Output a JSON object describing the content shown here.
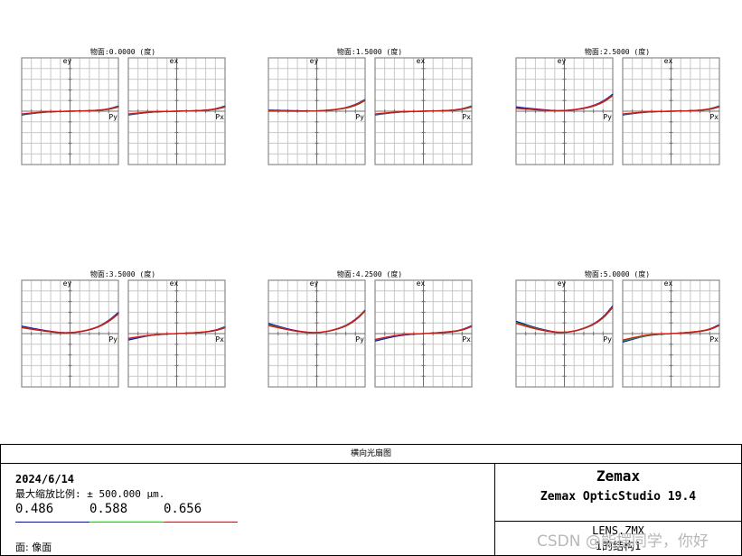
{
  "chart_data": [
    {
      "type": "line",
      "title": "物面:0.0000 (度)",
      "y_axis_label": "ey",
      "x_axis_label": "Py",
      "ylim": [
        -1,
        1
      ],
      "xlim": [
        -1,
        1
      ],
      "grid": true,
      "series": [
        {
          "name": "0.486",
          "color": "#0000ff",
          "x": [
            -1,
            -0.5,
            0,
            0.5,
            0.8,
            1
          ],
          "y": [
            -0.07,
            -0.01,
            0,
            0.01,
            0.04,
            0.1
          ]
        },
        {
          "name": "0.588",
          "color": "#00c000",
          "x": [
            -1,
            -0.5,
            0,
            0.5,
            0.8,
            1
          ],
          "y": [
            -0.06,
            -0.01,
            0,
            0.01,
            0.035,
            0.09
          ]
        },
        {
          "name": "0.656",
          "color": "#ff0000",
          "x": [
            -1,
            -0.5,
            0,
            0.5,
            0.8,
            1
          ],
          "y": [
            -0.05,
            -0.01,
            0,
            0.01,
            0.03,
            0.08
          ]
        }
      ]
    },
    {
      "type": "line",
      "title": "物面:0.0000 (度)",
      "y_axis_label": "ex",
      "x_axis_label": "Px",
      "ylim": [
        -1,
        1
      ],
      "xlim": [
        -1,
        1
      ],
      "grid": true,
      "series": [
        {
          "name": "0.486",
          "color": "#0000ff",
          "x": [
            -1,
            -0.5,
            0,
            0.5,
            0.8,
            1
          ],
          "y": [
            -0.07,
            -0.01,
            0,
            0.01,
            0.04,
            0.1
          ]
        },
        {
          "name": "0.588",
          "color": "#00c000",
          "x": [
            -1,
            -0.5,
            0,
            0.5,
            0.8,
            1
          ],
          "y": [
            -0.06,
            -0.01,
            0,
            0.01,
            0.035,
            0.09
          ]
        },
        {
          "name": "0.656",
          "color": "#ff0000",
          "x": [
            -1,
            -0.5,
            0,
            0.5,
            0.8,
            1
          ],
          "y": [
            -0.05,
            -0.01,
            0,
            0.01,
            0.03,
            0.08
          ]
        }
      ]
    },
    {
      "type": "line",
      "title": "物面:1.5000 (度)",
      "y_axis_label": "ey",
      "x_axis_label": "Py",
      "ylim": [
        -1,
        1
      ],
      "xlim": [
        -1,
        1
      ],
      "grid": true,
      "series": [
        {
          "name": "0.486",
          "color": "#0000ff",
          "x": [
            -1,
            -0.5,
            0,
            0.5,
            0.8,
            1
          ],
          "y": [
            0.02,
            0.01,
            0,
            0.04,
            0.12,
            0.22
          ]
        },
        {
          "name": "0.588",
          "color": "#00c000",
          "x": [
            -1,
            -0.5,
            0,
            0.5,
            0.8,
            1
          ],
          "y": [
            0.01,
            0,
            0,
            0.04,
            0.11,
            0.21
          ]
        },
        {
          "name": "0.656",
          "color": "#ff0000",
          "x": [
            -1,
            -0.5,
            0,
            0.5,
            0.8,
            1
          ],
          "y": [
            0,
            0,
            0,
            0.035,
            0.1,
            0.2
          ]
        }
      ]
    },
    {
      "type": "line",
      "title": "物面:1.5000 (度)",
      "y_axis_label": "ex",
      "x_axis_label": "Px",
      "ylim": [
        -1,
        1
      ],
      "xlim": [
        -1,
        1
      ],
      "grid": true,
      "series": [
        {
          "name": "0.486",
          "color": "#0000ff",
          "x": [
            -1,
            -0.5,
            0,
            0.5,
            0.8,
            1
          ],
          "y": [
            -0.07,
            -0.01,
            0,
            0.01,
            0.04,
            0.1
          ]
        },
        {
          "name": "0.588",
          "color": "#00c000",
          "x": [
            -1,
            -0.5,
            0,
            0.5,
            0.8,
            1
          ],
          "y": [
            -0.06,
            -0.01,
            0,
            0.01,
            0.035,
            0.09
          ]
        },
        {
          "name": "0.656",
          "color": "#ff0000",
          "x": [
            -1,
            -0.5,
            0,
            0.5,
            0.8,
            1
          ],
          "y": [
            -0.05,
            -0.01,
            0,
            0.01,
            0.03,
            0.08
          ]
        }
      ]
    },
    {
      "type": "line",
      "title": "物面:2.5000 (度)",
      "y_axis_label": "ey",
      "x_axis_label": "Py",
      "ylim": [
        -1,
        1
      ],
      "xlim": [
        -1,
        1
      ],
      "grid": true,
      "series": [
        {
          "name": "0.486",
          "color": "#0000ff",
          "x": [
            -1,
            -0.5,
            0,
            0.5,
            0.8,
            1
          ],
          "y": [
            0.08,
            0.03,
            0,
            0.07,
            0.18,
            0.32
          ]
        },
        {
          "name": "0.588",
          "color": "#00c000",
          "x": [
            -1,
            -0.5,
            0,
            0.5,
            0.8,
            1
          ],
          "y": [
            0.06,
            0.02,
            0,
            0.065,
            0.17,
            0.3
          ]
        },
        {
          "name": "0.656",
          "color": "#ff0000",
          "x": [
            -1,
            -0.5,
            0,
            0.5,
            0.8,
            1
          ],
          "y": [
            0.05,
            0.02,
            0,
            0.06,
            0.16,
            0.29
          ]
        }
      ]
    },
    {
      "type": "line",
      "title": "物面:2.5000 (度)",
      "y_axis_label": "ex",
      "x_axis_label": "Px",
      "ylim": [
        -1,
        1
      ],
      "xlim": [
        -1,
        1
      ],
      "grid": true,
      "series": [
        {
          "name": "0.486",
          "color": "#0000ff",
          "x": [
            -1,
            -0.5,
            0,
            0.5,
            0.8,
            1
          ],
          "y": [
            -0.07,
            -0.01,
            0,
            0.01,
            0.04,
            0.1
          ]
        },
        {
          "name": "0.588",
          "color": "#00c000",
          "x": [
            -1,
            -0.5,
            0,
            0.5,
            0.8,
            1
          ],
          "y": [
            -0.06,
            -0.01,
            0,
            0.01,
            0.035,
            0.09
          ]
        },
        {
          "name": "0.656",
          "color": "#ff0000",
          "x": [
            -1,
            -0.5,
            0,
            0.5,
            0.8,
            1
          ],
          "y": [
            -0.05,
            -0.01,
            0,
            0.01,
            0.03,
            0.08
          ]
        }
      ]
    },
    {
      "type": "line",
      "title": "物面:3.5000 (度)",
      "y_axis_label": "ey",
      "x_axis_label": "Py",
      "ylim": [
        -1,
        1
      ],
      "xlim": [
        -1,
        1
      ],
      "grid": true,
      "series": [
        {
          "name": "0.486",
          "color": "#0000ff",
          "x": [
            -1,
            -0.5,
            0,
            0.5,
            0.8,
            1
          ],
          "y": [
            0.14,
            0.05,
            0,
            0.09,
            0.24,
            0.4
          ]
        },
        {
          "name": "0.588",
          "color": "#00c000",
          "x": [
            -1,
            -0.5,
            0,
            0.5,
            0.8,
            1
          ],
          "y": [
            0.12,
            0.04,
            0,
            0.085,
            0.23,
            0.38
          ]
        },
        {
          "name": "0.656",
          "color": "#ff0000",
          "x": [
            -1,
            -0.5,
            0,
            0.5,
            0.8,
            1
          ],
          "y": [
            0.11,
            0.04,
            0,
            0.08,
            0.22,
            0.37
          ]
        }
      ]
    },
    {
      "type": "line",
      "title": "物面:3.5000 (度)",
      "y_axis_label": "ex",
      "x_axis_label": "Px",
      "ylim": [
        -1,
        1
      ],
      "xlim": [
        -1,
        1
      ],
      "grid": true,
      "series": [
        {
          "name": "0.486",
          "color": "#0000ff",
          "x": [
            -1,
            -0.5,
            0,
            0.5,
            0.8,
            1
          ],
          "y": [
            -0.12,
            -0.02,
            0,
            0.02,
            0.06,
            0.13
          ]
        },
        {
          "name": "0.588",
          "color": "#00c000",
          "x": [
            -1,
            -0.5,
            0,
            0.5,
            0.8,
            1
          ],
          "y": [
            -0.1,
            -0.02,
            0,
            0.02,
            0.055,
            0.12
          ]
        },
        {
          "name": "0.656",
          "color": "#ff0000",
          "x": [
            -1,
            -0.5,
            0,
            0.5,
            0.8,
            1
          ],
          "y": [
            -0.09,
            -0.02,
            0,
            0.02,
            0.05,
            0.11
          ]
        }
      ]
    },
    {
      "type": "line",
      "title": "物面:4.2500 (度)",
      "y_axis_label": "ey",
      "x_axis_label": "Py",
      "ylim": [
        -1,
        1
      ],
      "xlim": [
        -1,
        1
      ],
      "grid": true,
      "series": [
        {
          "name": "0.486",
          "color": "#0000ff",
          "x": [
            -1,
            -0.5,
            0,
            0.5,
            0.8,
            1
          ],
          "y": [
            0.19,
            0.06,
            0,
            0.1,
            0.26,
            0.44
          ]
        },
        {
          "name": "0.588",
          "color": "#00c000",
          "x": [
            -1,
            -0.5,
            0,
            0.5,
            0.8,
            1
          ],
          "y": [
            0.17,
            0.05,
            0,
            0.095,
            0.25,
            0.43
          ]
        },
        {
          "name": "0.656",
          "color": "#ff0000",
          "x": [
            -1,
            -0.5,
            0,
            0.5,
            0.8,
            1
          ],
          "y": [
            0.15,
            0.05,
            0,
            0.09,
            0.24,
            0.42
          ]
        }
      ]
    },
    {
      "type": "line",
      "title": "物面:4.2500 (度)",
      "y_axis_label": "ex",
      "x_axis_label": "Px",
      "ylim": [
        -1,
        1
      ],
      "xlim": [
        -1,
        1
      ],
      "grid": true,
      "series": [
        {
          "name": "0.486",
          "color": "#0000ff",
          "x": [
            -1,
            -0.5,
            0,
            0.5,
            0.8,
            1
          ],
          "y": [
            -0.14,
            -0.03,
            0,
            0.03,
            0.07,
            0.15
          ]
        },
        {
          "name": "0.588",
          "color": "#00c000",
          "x": [
            -1,
            -0.5,
            0,
            0.5,
            0.8,
            1
          ],
          "y": [
            -0.12,
            -0.02,
            0,
            0.025,
            0.065,
            0.14
          ]
        },
        {
          "name": "0.656",
          "color": "#ff0000",
          "x": [
            -1,
            -0.5,
            0,
            0.5,
            0.8,
            1
          ],
          "y": [
            -0.11,
            -0.02,
            0,
            0.02,
            0.06,
            0.13
          ]
        }
      ]
    },
    {
      "type": "line",
      "title": "物面:5.0000 (度)",
      "y_axis_label": "ey",
      "x_axis_label": "Py",
      "ylim": [
        -1,
        1
      ],
      "xlim": [
        -1,
        1
      ],
      "grid": true,
      "series": [
        {
          "name": "0.486",
          "color": "#0000ff",
          "x": [
            -1,
            -0.5,
            0,
            0.5,
            0.8,
            1
          ],
          "y": [
            0.23,
            0.08,
            0,
            0.12,
            0.3,
            0.52
          ]
        },
        {
          "name": "0.588",
          "color": "#00c000",
          "x": [
            -1,
            -0.5,
            0,
            0.5,
            0.8,
            1
          ],
          "y": [
            0.21,
            0.07,
            0,
            0.115,
            0.29,
            0.5
          ]
        },
        {
          "name": "0.656",
          "color": "#ff0000",
          "x": [
            -1,
            -0.5,
            0,
            0.5,
            0.8,
            1
          ],
          "y": [
            0.19,
            0.06,
            0,
            0.11,
            0.28,
            0.49
          ]
        }
      ]
    },
    {
      "type": "line",
      "title": "物面:5.0000 (度)",
      "y_axis_label": "ex",
      "x_axis_label": "Px",
      "ylim": [
        -1,
        1
      ],
      "xlim": [
        -1,
        1
      ],
      "grid": true,
      "series": [
        {
          "name": "0.486",
          "color": "#0000ff",
          "x": [
            -1,
            -0.5,
            0,
            0.5,
            0.8,
            1
          ],
          "y": [
            -0.16,
            -0.03,
            0,
            0.03,
            0.08,
            0.17
          ]
        },
        {
          "name": "0.588",
          "color": "#00c000",
          "x": [
            -1,
            -0.5,
            0,
            0.5,
            0.8,
            1
          ],
          "y": [
            -0.14,
            -0.03,
            0,
            0.03,
            0.075,
            0.16
          ]
        },
        {
          "name": "0.656",
          "color": "#ff0000",
          "x": [
            -1,
            -0.5,
            0,
            0.5,
            0.8,
            1
          ],
          "y": [
            -0.12,
            -0.02,
            0,
            0.025,
            0.07,
            0.15
          ]
        }
      ]
    }
  ],
  "footer": {
    "title": "横向光扇图",
    "date": "2024/6/14",
    "scale_text": "最大缩放比例: ± 500.000 µm.",
    "wavelengths": [
      {
        "value": "0.486",
        "color": "#0000ff"
      },
      {
        "value": "0.588",
        "color": "#00dd00"
      },
      {
        "value": "0.656",
        "color": "#ff0000"
      }
    ],
    "surface_text": "面: 像面",
    "brand": "Zemax",
    "product": "Zemax OpticStudio 19.4",
    "lens_file": "LENS.ZMX",
    "config": "1的结构1"
  },
  "watermark": "CSDN @能摆同学，你好"
}
